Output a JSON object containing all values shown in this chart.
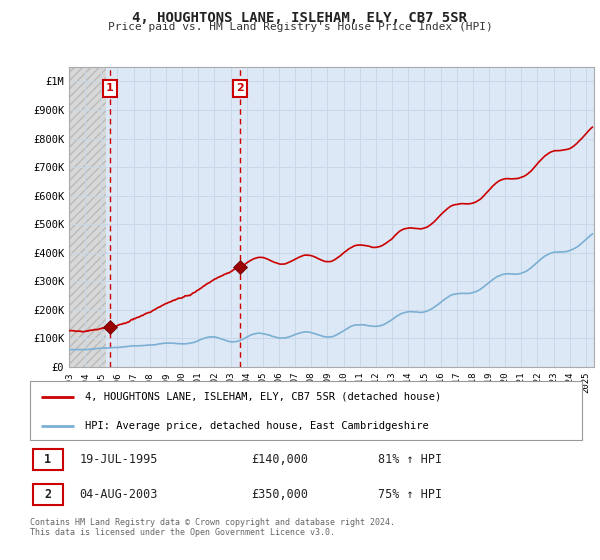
{
  "title": "4, HOUGHTONS LANE, ISLEHAM, ELY, CB7 5SR",
  "subtitle": "Price paid vs. HM Land Registry's House Price Index (HPI)",
  "ylim": [
    0,
    1050000
  ],
  "yticks": [
    0,
    100000,
    200000,
    300000,
    400000,
    500000,
    600000,
    700000,
    800000,
    900000,
    1000000
  ],
  "ytick_labels": [
    "£0",
    "£100K",
    "£200K",
    "£300K",
    "£400K",
    "£500K",
    "£600K",
    "£700K",
    "£800K",
    "£900K",
    "£1M"
  ],
  "sale1_date": 1995.54,
  "sale1_price": 140000,
  "sale1_label": "1",
  "sale2_date": 2003.59,
  "sale2_price": 350000,
  "sale2_label": "2",
  "sale_color": "#cc0000",
  "hpi_color": "#7bafd4",
  "vline_color": "#cc0000",
  "grid_color": "#c8d8e8",
  "bg_color": "#ffffff",
  "plot_bg": "#dce8f5",
  "hatch_bg": "#e8e8e8",
  "legend1_text": "4, HOUGHTONS LANE, ISLEHAM, ELY, CB7 5SR (detached house)",
  "legend2_text": "HPI: Average price, detached house, East Cambridgeshire",
  "table_row1": [
    "1",
    "19-JUL-1995",
    "£140,000",
    "81% ↑ HPI"
  ],
  "table_row2": [
    "2",
    "04-AUG-2003",
    "£350,000",
    "75% ↑ HPI"
  ],
  "footer": "Contains HM Land Registry data © Crown copyright and database right 2024.\nThis data is licensed under the Open Government Licence v3.0.",
  "xmin": 1993.0,
  "xmax": 2025.5
}
